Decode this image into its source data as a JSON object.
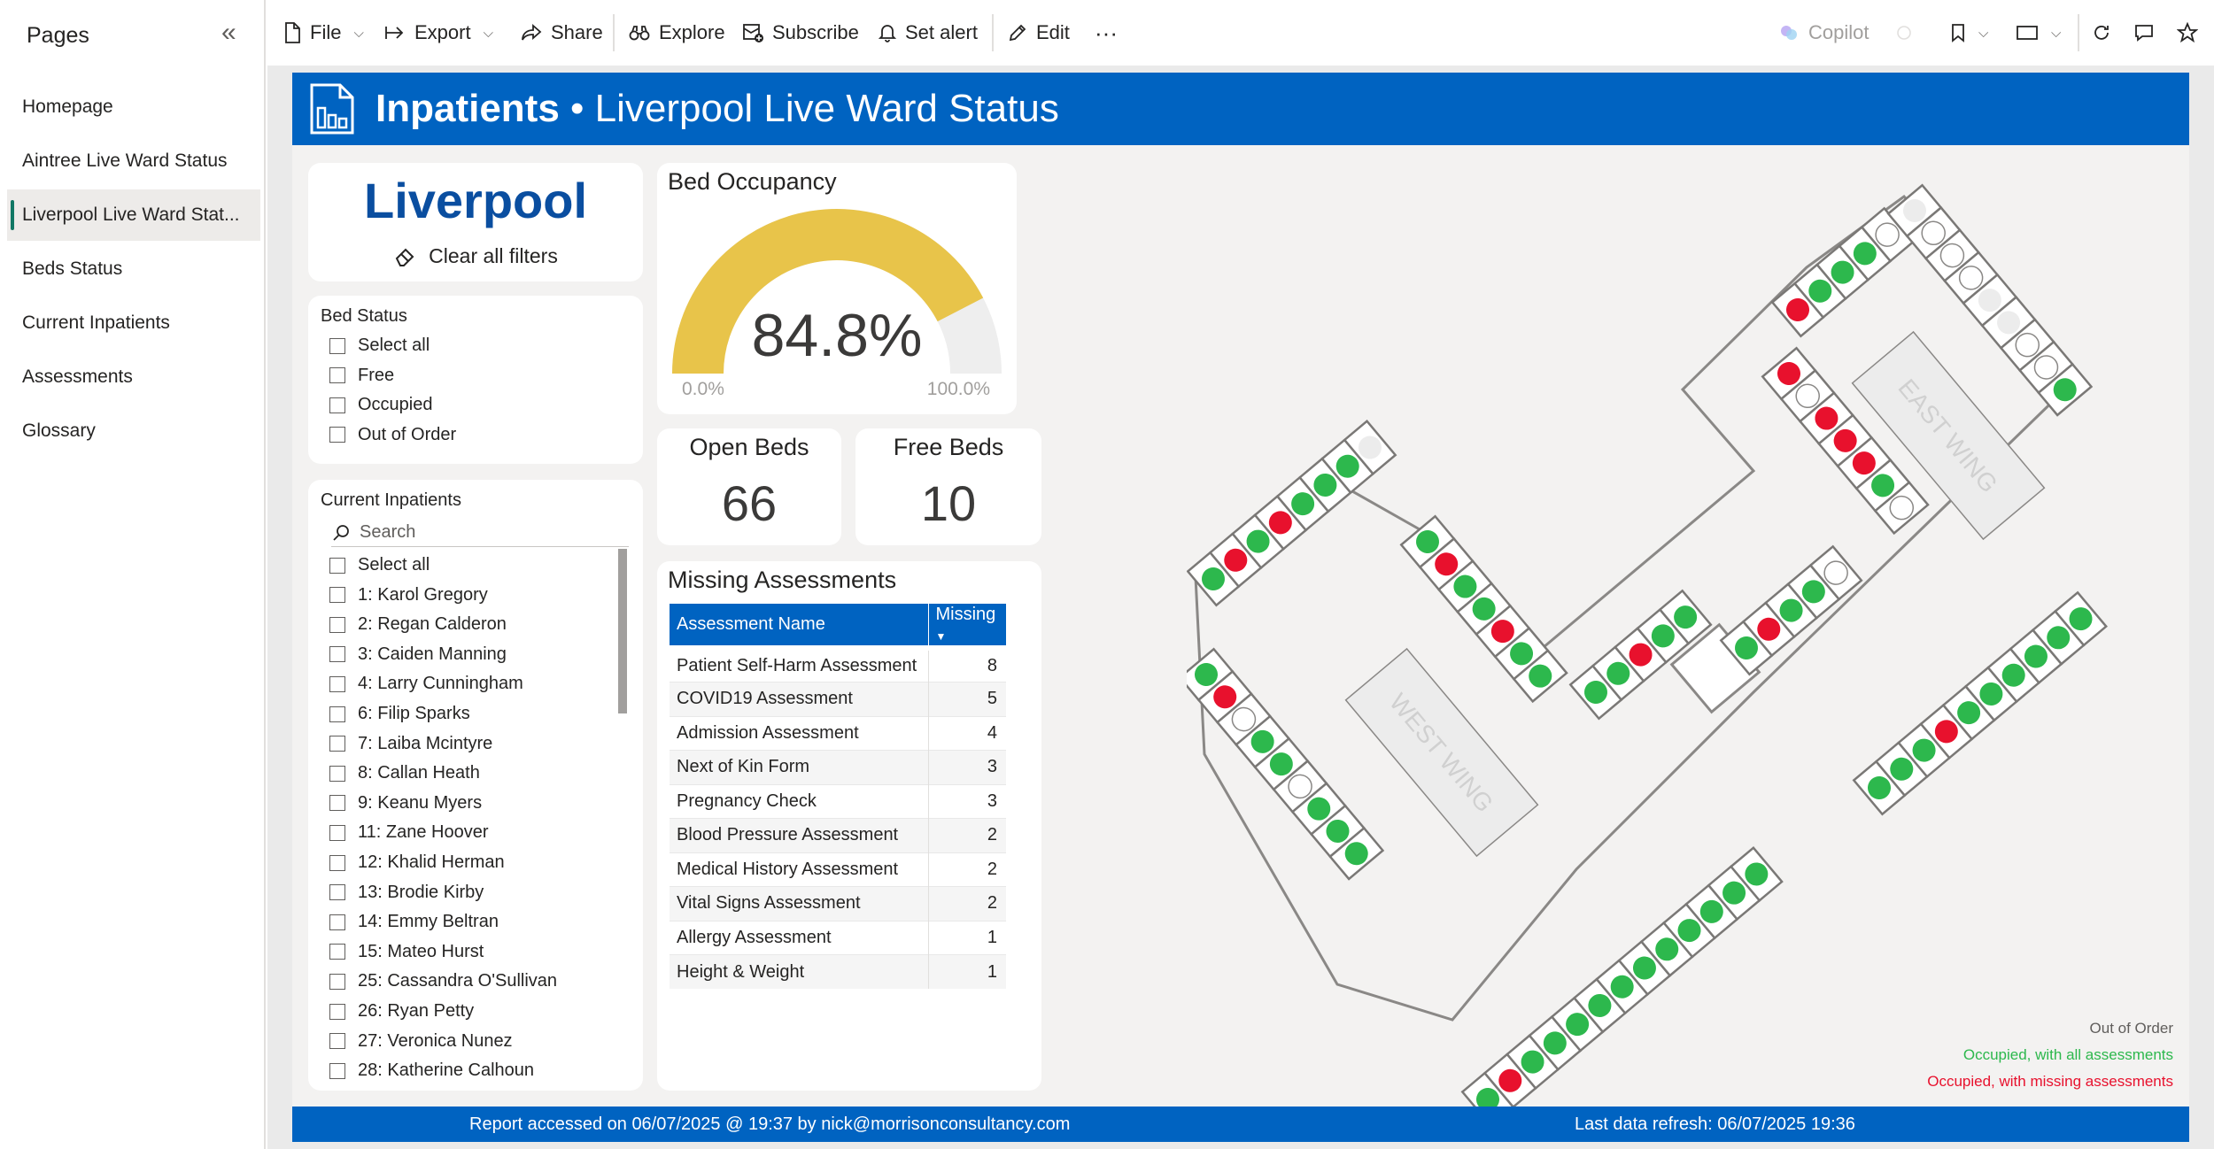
{
  "pages_pane": {
    "title": "Pages",
    "items": [
      {
        "label": "Homepage",
        "active": false
      },
      {
        "label": "Aintree Live Ward Status",
        "active": false
      },
      {
        "label": "Liverpool Live Ward Stat...",
        "active": true
      },
      {
        "label": "Beds Status",
        "active": false
      },
      {
        "label": "Current Inpatients",
        "active": false
      },
      {
        "label": "Assessments",
        "active": false
      },
      {
        "label": "Glossary",
        "active": false
      }
    ]
  },
  "toolbar": {
    "file": "File",
    "export": "Export",
    "share": "Share",
    "explore": "Explore",
    "subscribe": "Subscribe",
    "set_alert": "Set alert",
    "edit": "Edit",
    "more": "···",
    "copilot": "Copilot"
  },
  "banner": {
    "title_bold": "Inpatients",
    "title_rest": " • Liverpool Live Ward Status"
  },
  "city": {
    "name": "Liverpool",
    "clear_filters": "Clear all filters"
  },
  "bed_status_slicer": {
    "title": "Bed Status",
    "options": [
      "Select all",
      "Free",
      "Occupied",
      "Out of Order"
    ]
  },
  "inpatients_slicer": {
    "title": "Current Inpatients",
    "search_placeholder": "Search",
    "options": [
      "Select all",
      "1: Karol Gregory",
      "2: Regan Calderon",
      "3: Caiden Manning",
      "4: Larry Cunningham",
      "6: Filip Sparks",
      "7: Laiba Mcintyre",
      "8: Callan Heath",
      "9: Keanu Myers",
      "11: Zane Hoover",
      "12: Khalid Herman",
      "13: Brodie Kirby",
      "14: Emmy Beltran",
      "15: Mateo Hurst",
      "25: Cassandra O'Sullivan",
      "26: Ryan Petty",
      "27: Veronica Nunez",
      "28: Katherine Calhoun"
    ]
  },
  "bed_occupancy": {
    "title": "Bed Occupancy",
    "value": 0.848,
    "value_label": "84.8%",
    "min_label": "0.0%",
    "max_label": "100.0%",
    "fill_color": "#e8c44a",
    "track_color": "#eeeeee"
  },
  "open_beds": {
    "label": "Open Beds",
    "value": "66"
  },
  "free_beds": {
    "label": "Free Beds",
    "value": "10"
  },
  "missing_assessments": {
    "title": "Missing Assessments",
    "col_name": "Assessment Name",
    "col_missing": "Missing",
    "rows": [
      {
        "name": "Patient Self-Harm Assessment",
        "missing": "8"
      },
      {
        "name": "COVID19 Assessment",
        "missing": "5"
      },
      {
        "name": "Admission Assessment",
        "missing": "4"
      },
      {
        "name": "Next of Kin Form",
        "missing": "3"
      },
      {
        "name": "Pregnancy Check",
        "missing": "3"
      },
      {
        "name": "Blood Pressure Assessment",
        "missing": "2"
      },
      {
        "name": "Medical History Assessment",
        "missing": "2"
      },
      {
        "name": "Vital Signs Assessment",
        "missing": "2"
      },
      {
        "name": "Allergy Assessment",
        "missing": "1"
      },
      {
        "name": "Height & Weight",
        "missing": "1"
      }
    ]
  },
  "ward_map": {
    "east_label": "EAST WING",
    "west_label": "WEST WING",
    "colors": {
      "green": "#2db84d",
      "red": "#e8112d",
      "free": "#ffffff",
      "outoforder": "#ececec"
    },
    "segments": [
      {
        "id": "w-top",
        "statuses": [
          "g",
          "r",
          "g",
          "r",
          "g",
          "g",
          "g",
          "outoforder"
        ]
      },
      {
        "id": "w-bottom",
        "statuses": [
          "g",
          "r",
          "free",
          "g",
          "g",
          "free",
          "g",
          "g",
          "g"
        ]
      },
      {
        "id": "w-inner",
        "statuses": [
          "g",
          "r",
          "g",
          "g",
          "r",
          "g",
          "g"
        ]
      },
      {
        "id": "connector",
        "statuses": [
          "g",
          "g",
          "r",
          "g",
          "g"
        ]
      },
      {
        "id": "e-left",
        "statuses": [
          "r",
          "free",
          "r",
          "r",
          "r",
          "g",
          "free"
        ]
      },
      {
        "id": "e-top-left",
        "statuses": [
          "r",
          "g",
          "g",
          "g",
          "free"
        ]
      },
      {
        "id": "e-top-right",
        "statuses": [
          "outoforder",
          "free",
          "free",
          "free",
          "outoforder",
          "outoforder",
          "free",
          "free",
          "g"
        ]
      },
      {
        "id": "e-inner",
        "statuses": [
          "g",
          "r",
          "g",
          "g",
          "free"
        ]
      },
      {
        "id": "e-right",
        "statuses": [
          "g",
          "g",
          "g",
          "r",
          "g",
          "g",
          "g",
          "g",
          "g",
          "g"
        ]
      },
      {
        "id": "bottom-long",
        "statuses": [
          "g",
          "r",
          "g",
          "g",
          "g",
          "g",
          "g",
          "g",
          "g",
          "g",
          "g",
          "g",
          "g"
        ]
      }
    ],
    "legend": [
      {
        "label": "Out of Order",
        "color": "#605e5c"
      },
      {
        "label": "Occupied, with all assessments",
        "color": "#2db84d"
      },
      {
        "label": "Occupied, with missing assessments",
        "color": "#e8112d"
      }
    ]
  },
  "footer": {
    "accessed": "Report accessed on 06/07/2025 @ 19:37 by nick@morrisonconsultancy.com",
    "refresh": "Last data refresh: 06/07/2025 19:36"
  }
}
